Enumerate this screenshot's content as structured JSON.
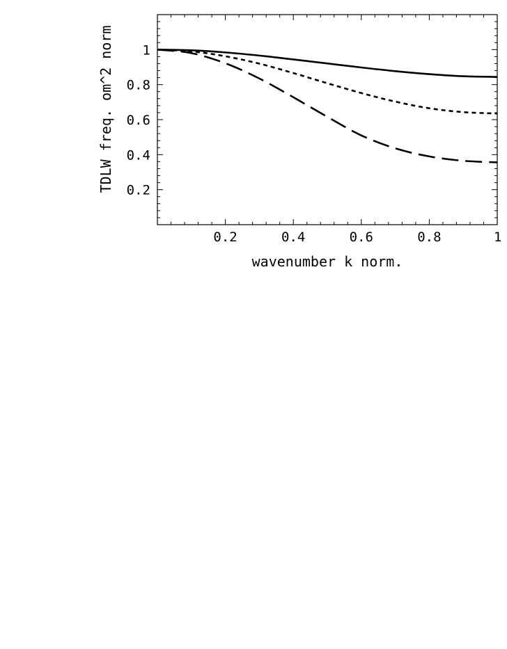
{
  "chart_data": {
    "type": "line",
    "title": "",
    "xlabel": "wavenumber k norm.",
    "ylabel": "TDLW freq. om^2 norm",
    "xlim": [
      0,
      1
    ],
    "ylim": [
      0,
      1.2
    ],
    "xticks": [
      {
        "value": 0.2,
        "label": "0.2"
      },
      {
        "value": 0.4,
        "label": "0.4"
      },
      {
        "value": 0.6,
        "label": "0.6"
      },
      {
        "value": 0.8,
        "label": "0.8"
      },
      {
        "value": 1.0,
        "label": "1"
      }
    ],
    "yticks": [
      {
        "value": 0.2,
        "label": "0.2"
      },
      {
        "value": 0.4,
        "label": "0.4"
      },
      {
        "value": 0.6,
        "label": "0.6"
      },
      {
        "value": 0.8,
        "label": "0.8"
      },
      {
        "value": 1.0,
        "label": "1"
      }
    ],
    "grid": false,
    "legend": "none",
    "series": [
      {
        "style": "solid",
        "x": [
          0,
          0.1,
          0.2,
          0.3,
          0.4,
          0.5,
          0.6,
          0.7,
          0.8,
          0.9,
          1.0
        ],
        "y": [
          1.0,
          0.996,
          0.984,
          0.966,
          0.944,
          0.921,
          0.898,
          0.877,
          0.86,
          0.848,
          0.844
        ]
      },
      {
        "style": "dotted",
        "x": [
          0,
          0.1,
          0.2,
          0.3,
          0.4,
          0.5,
          0.6,
          0.7,
          0.8,
          0.9,
          1.0
        ],
        "y": [
          1.0,
          0.99,
          0.962,
          0.92,
          0.866,
          0.808,
          0.752,
          0.703,
          0.665,
          0.643,
          0.635
        ]
      },
      {
        "style": "dashed",
        "x": [
          0,
          0.1,
          0.2,
          0.3,
          0.4,
          0.5,
          0.6,
          0.7,
          0.8,
          0.9,
          1.0
        ],
        "y": [
          1.0,
          0.98,
          0.922,
          0.835,
          0.728,
          0.616,
          0.51,
          0.436,
          0.39,
          0.365,
          0.356
        ]
      }
    ]
  }
}
